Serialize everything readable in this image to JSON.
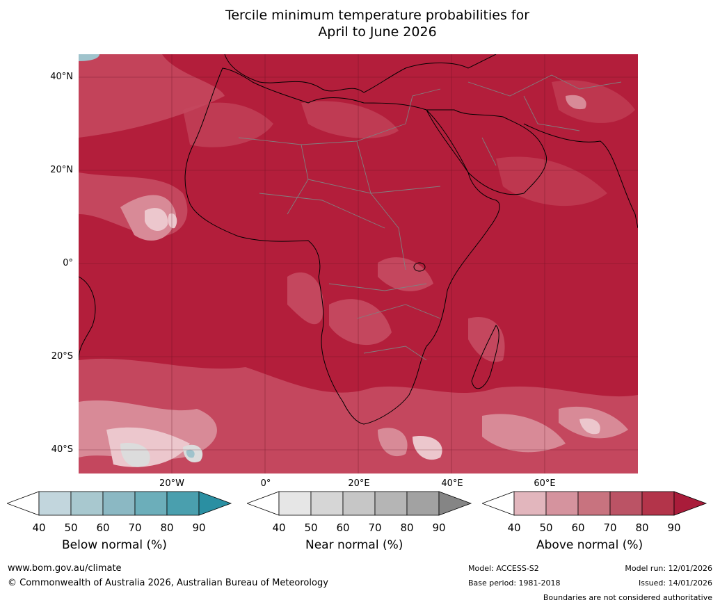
{
  "title_line1": "Tercile minimum temperature probabilities for",
  "title_line2": "April to June 2026",
  "lat_labels": [
    "40°N",
    "20°N",
    "0°",
    "20°S",
    "40°S"
  ],
  "lon_labels": [
    "20°W",
    "0°",
    "20°E",
    "40°E",
    "60°E"
  ],
  "colorbars": [
    {
      "label": "Below normal (%)",
      "ticks": [
        "40",
        "50",
        "60",
        "70",
        "80",
        "90"
      ],
      "colors": [
        "#c2d6dd",
        "#a8c8cf",
        "#8bb8c3",
        "#6caeba",
        "#4a9fae",
        "#2a8fa2"
      ]
    },
    {
      "label": "Near normal (%)",
      "ticks": [
        "40",
        "50",
        "60",
        "70",
        "80",
        "90"
      ],
      "colors": [
        "#e6e6e6",
        "#d6d6d6",
        "#c6c6c6",
        "#b5b5b5",
        "#a2a2a2",
        "#858585"
      ]
    },
    {
      "label": "Above normal (%)",
      "ticks": [
        "40",
        "50",
        "60",
        "70",
        "80",
        "90"
      ],
      "colors": [
        "#e2b6bd",
        "#d5939e",
        "#c8737f",
        "#bb5365",
        "#b3344a",
        "#a91c3a"
      ]
    }
  ],
  "footer": {
    "website": "www.bom.gov.au/climate",
    "copyright": "© Commonwealth of Australia 2026, Australian Bureau of Meteorology",
    "model": "Model: ACCESS-S2",
    "base_period": "Base period: 1981-2018",
    "model_run": "Model run: 12/01/2026",
    "issued": "Issued: 14/01/2026",
    "disclaimer": "Boundaries are not considered authoritative"
  },
  "colors": {
    "map_base": "#b31e3b",
    "map_mid": "#c4475e",
    "map_light": "#d88a97",
    "map_pale": "#ecc7cd",
    "cold_pale": "#d8e6ea",
    "cold_mid": "#9fc3cc",
    "grey_light": "#dcdcdc"
  }
}
